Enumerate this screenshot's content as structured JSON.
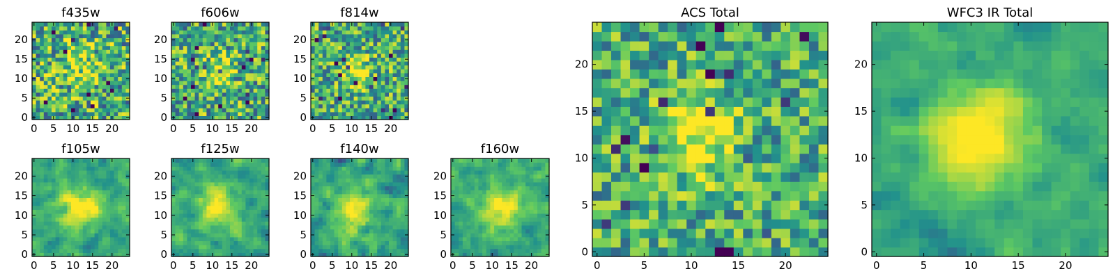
{
  "figure": {
    "colormap": "viridis",
    "colormap_stops": [
      "#440154",
      "#3b528b",
      "#21918c",
      "#5ec962",
      "#fde725"
    ],
    "frame_color": "#000000",
    "tick_color": "#000000"
  },
  "chart_data": [
    {
      "type": "heatmap",
      "title": "f435w",
      "grid": [
        25,
        25
      ],
      "xlim": [
        -0.5,
        24.5
      ],
      "ylim": [
        -0.5,
        24.5
      ],
      "xticks": [
        "0",
        "5",
        "10",
        "15",
        "20"
      ],
      "yticks": [
        "0",
        "5",
        "10",
        "15",
        "20"
      ],
      "source": {
        "amp": 0.25,
        "cx": 12,
        "cy": 13,
        "sigma": 4,
        "noise": 0.38,
        "seed": 11,
        "smooth": 0
      }
    },
    {
      "type": "heatmap",
      "title": "f606w",
      "grid": [
        25,
        25
      ],
      "xlim": [
        -0.5,
        24.5
      ],
      "ylim": [
        -0.5,
        24.5
      ],
      "xticks": [
        "0",
        "5",
        "10",
        "15",
        "20"
      ],
      "yticks": [
        "0",
        "5",
        "10",
        "15",
        "20"
      ],
      "source": {
        "amp": 0.3,
        "cx": 11,
        "cy": 12,
        "sigma": 3,
        "noise": 0.36,
        "seed": 23,
        "smooth": 0
      }
    },
    {
      "type": "heatmap",
      "title": "f814w",
      "grid": [
        25,
        25
      ],
      "xlim": [
        -0.5,
        24.5
      ],
      "ylim": [
        -0.5,
        24.5
      ],
      "xticks": [
        "0",
        "5",
        "10",
        "15",
        "20"
      ],
      "yticks": [
        "0",
        "5",
        "10",
        "15",
        "20"
      ],
      "source": {
        "amp": 0.45,
        "cx": 11,
        "cy": 12,
        "sigma": 2.5,
        "noise": 0.34,
        "seed": 37,
        "smooth": 0
      }
    },
    {
      "type": "heatmap",
      "title": "f105w",
      "grid": [
        25,
        25
      ],
      "xlim": [
        -0.5,
        24.5
      ],
      "ylim": [
        -0.5,
        24.5
      ],
      "xticks": [
        "0",
        "5",
        "10",
        "15",
        "20"
      ],
      "yticks": [
        "0",
        "5",
        "10",
        "15",
        "20"
      ],
      "source": {
        "amp": 0.45,
        "cx": 12,
        "cy": 12,
        "sigma": 3.5,
        "noise": 0.32,
        "seed": 41,
        "smooth": 1
      }
    },
    {
      "type": "heatmap",
      "title": "f125w",
      "grid": [
        25,
        25
      ],
      "xlim": [
        -0.5,
        24.5
      ],
      "ylim": [
        -0.5,
        24.5
      ],
      "xticks": [
        "0",
        "5",
        "10",
        "15",
        "20"
      ],
      "yticks": [
        "0",
        "5",
        "10",
        "15",
        "20"
      ],
      "source": {
        "amp": 0.4,
        "cx": 12,
        "cy": 12,
        "sigma": 3.5,
        "noise": 0.32,
        "seed": 53,
        "smooth": 1
      }
    },
    {
      "type": "heatmap",
      "title": "f140w",
      "grid": [
        25,
        25
      ],
      "xlim": [
        -0.5,
        24.5
      ],
      "ylim": [
        -0.5,
        24.5
      ],
      "xticks": [
        "0",
        "5",
        "10",
        "15",
        "20"
      ],
      "yticks": [
        "0",
        "5",
        "10",
        "15",
        "20"
      ],
      "source": {
        "amp": 0.45,
        "cx": 10,
        "cy": 11,
        "sigma": 3.5,
        "noise": 0.32,
        "seed": 67,
        "smooth": 1
      }
    },
    {
      "type": "heatmap",
      "title": "f160w",
      "grid": [
        25,
        25
      ],
      "xlim": [
        -0.5,
        24.5
      ],
      "ylim": [
        -0.5,
        24.5
      ],
      "xticks": [
        "0",
        "5",
        "10",
        "15",
        "20"
      ],
      "yticks": [
        "0",
        "5",
        "10",
        "15",
        "20"
      ],
      "source": {
        "amp": 0.45,
        "cx": 12,
        "cy": 12,
        "sigma": 3.5,
        "noise": 0.32,
        "seed": 79,
        "smooth": 1
      }
    },
    {
      "type": "heatmap",
      "title": "ACS Total",
      "grid": [
        25,
        25
      ],
      "xlim": [
        -0.5,
        24.5
      ],
      "ylim": [
        -0.5,
        24.5
      ],
      "xticks": [
        "0",
        "5",
        "10",
        "15",
        "20"
      ],
      "yticks": [
        "0",
        "5",
        "10",
        "15",
        "20"
      ],
      "source": {
        "amp": 0.45,
        "cx": 10.5,
        "cy": 12,
        "sigma": 2.8,
        "noise": 0.3,
        "seed": 97,
        "smooth": 0
      }
    },
    {
      "type": "heatmap",
      "title": "WFC3 IR Total",
      "grid": [
        25,
        25
      ],
      "xlim": [
        -0.5,
        24.5
      ],
      "ylim": [
        -0.5,
        24.5
      ],
      "xticks": [
        "0",
        "5",
        "10",
        "15",
        "20"
      ],
      "yticks": [
        "0",
        "5",
        "10",
        "15",
        "20"
      ],
      "source": {
        "amp": 0.5,
        "cx": 11,
        "cy": 12,
        "sigma": 3.5,
        "noise": 0.22,
        "seed": 113,
        "smooth": 1
      }
    }
  ]
}
